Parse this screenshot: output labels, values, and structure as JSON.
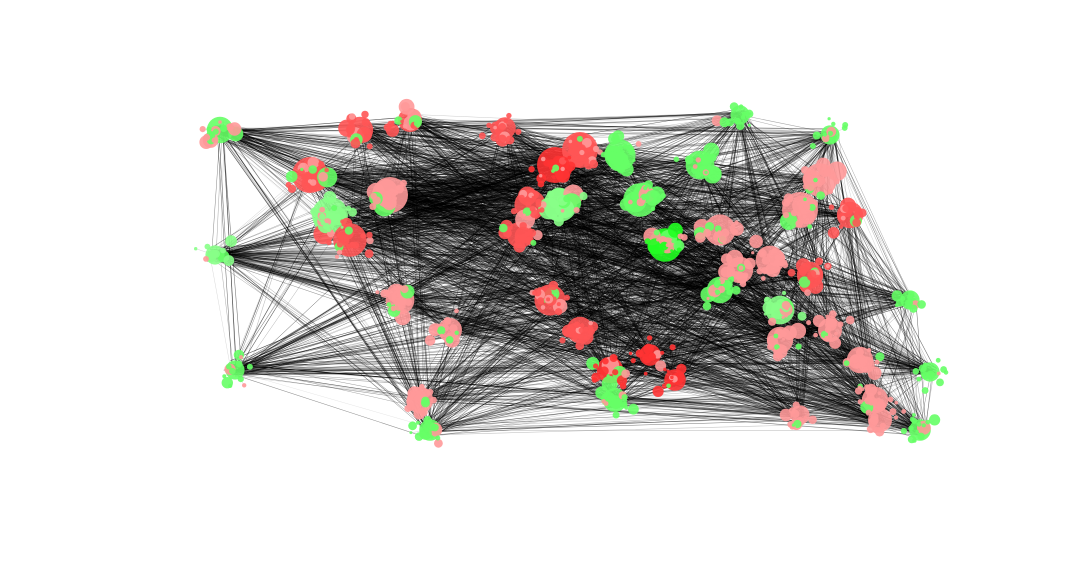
{
  "diagram": {
    "type": "network-graph",
    "layout": "geographic",
    "colors": {
      "background": "#ffffff",
      "edge": "#000000",
      "red_strong": "#ff3333",
      "red": "#ff5555",
      "pink": "#ff9999",
      "green_strong": "#22ff22",
      "green": "#66ff66",
      "green_light": "#88ff88"
    }
  }
}
